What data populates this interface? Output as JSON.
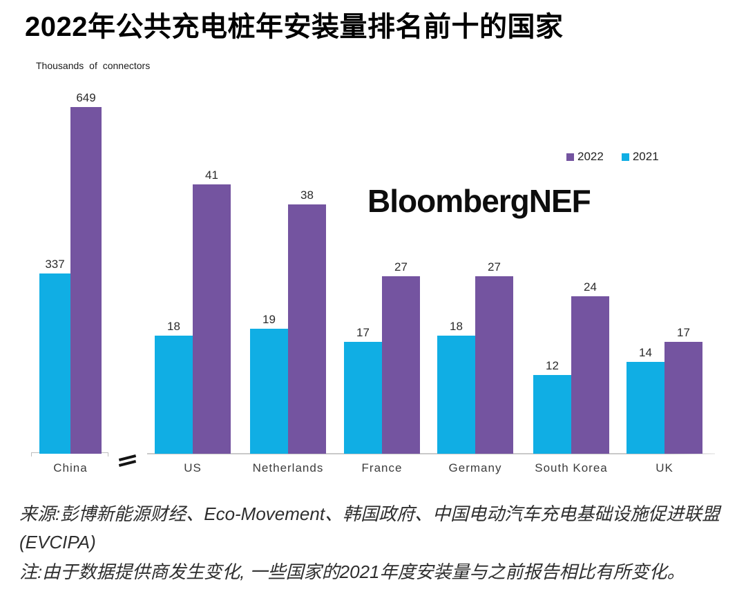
{
  "title": "2022年公共充电桩年安装量排名前十的国家",
  "axis_label": "Thousands of connectors",
  "watermark": "BloombergNEF",
  "legend": [
    {
      "label": "2022",
      "color": "#7454A0"
    },
    {
      "label": "2021",
      "color": "#10AEE4"
    }
  ],
  "source": "来源:彭博新能源财经、Eco-Movement、韩国政府、中国电动汽车充电基础设施促进联盟(EVCIPA)",
  "note": "注:由于数据提供商发生变化, 一些国家的2021年度安装量与之前报告相比有所变化。",
  "chart_data": {
    "type": "bar",
    "title": "2022年公共充电桩年安装量排名前十的国家",
    "ylabel": "Thousands of connectors",
    "categories": [
      "China",
      "US",
      "Netherlands",
      "France",
      "Germany",
      "South Korea",
      "UK"
    ],
    "series": [
      {
        "name": "2021",
        "color": "#10AEE4",
        "values": [
          337,
          18,
          19,
          17,
          18,
          12,
          14
        ]
      },
      {
        "name": "2022",
        "color": "#7454A0",
        "values": [
          649,
          41,
          38,
          27,
          27,
          24,
          17
        ]
      }
    ],
    "data_labels": true,
    "grid": false,
    "legend_position": "top-right",
    "axis_break_after_category": "China",
    "note_on_axis": "China bars drawn on compressed scale (axis break)"
  }
}
